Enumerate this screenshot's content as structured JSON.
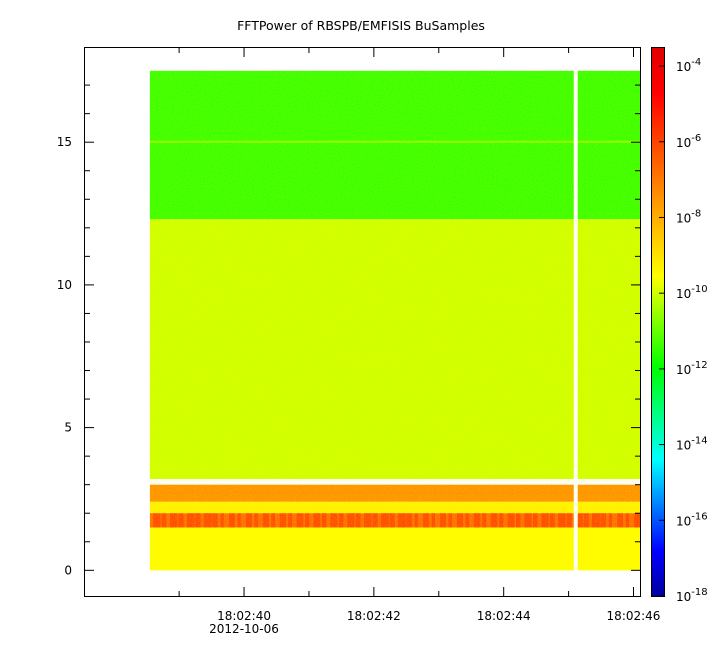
{
  "chart_data": {
    "type": "heatmap",
    "title": "FFTPower of RBSPB/EMFISIS  BuSamples",
    "xlabel": "",
    "ylabel": "",
    "x_ticks": [
      {
        "label": "18:02:40",
        "sublabel": "2012-10-06",
        "t": 40
      },
      {
        "label": "18:02:42",
        "sublabel": "",
        "t": 42
      },
      {
        "label": "18:02:44",
        "sublabel": "",
        "t": 44
      },
      {
        "label": "18:02:46",
        "sublabel": "",
        "t": 46
      }
    ],
    "x_minor_ticks": [
      39,
      41,
      43,
      45
    ],
    "xlim_seconds_after_18_02_00": [
      37.55,
      46.1
    ],
    "data_time_range_seconds": [
      38.55,
      46.1
    ],
    "data_gap_at_seconds": 45.11,
    "y_ticks": [
      0,
      5,
      10,
      15
    ],
    "ylim": [
      -0.9,
      18.3
    ],
    "data_ylim": [
      0,
      17.5
    ],
    "colorbar": {
      "scale": "log",
      "range": [
        1e-18,
        0.0003
      ],
      "tick_labels": [
        {
          "base": "10",
          "exp": "-4",
          "value": -4
        },
        {
          "base": "10",
          "exp": "-6",
          "value": -6
        },
        {
          "base": "10",
          "exp": "-8",
          "value": -8
        },
        {
          "base": "10",
          "exp": "-10",
          "value": -10
        },
        {
          "base": "10",
          "exp": "-12",
          "value": -12
        },
        {
          "base": "10",
          "exp": "-14",
          "value": -14
        },
        {
          "base": "10",
          "exp": "-16",
          "value": -16
        },
        {
          "base": "10",
          "exp": "-18",
          "value": -18
        }
      ],
      "colors": [
        "#0000a0",
        "#0000ff",
        "#0080ff",
        "#00ffff",
        "#00ff80",
        "#00ff00",
        "#80ff00",
        "#ffff00",
        "#ffc000",
        "#ff8000",
        "#ff4000",
        "#ff0000",
        "#e00000"
      ]
    },
    "bands": [
      {
        "y_from": 12.3,
        "y_to": 17.5,
        "log_power": -11.4
      },
      {
        "y_from": 3.2,
        "y_to": 12.3,
        "log_power": -10.0
      },
      {
        "y_from": 2.4,
        "y_to": 3.0,
        "log_power": -7.5
      },
      {
        "y_from": 2.0,
        "y_to": 2.4,
        "log_power": -9.3
      },
      {
        "y_from": 1.5,
        "y_to": 2.0,
        "log_power": -6.8
      },
      {
        "y_from": 0.0,
        "y_to": 1.5,
        "log_power": -9.5
      }
    ]
  }
}
